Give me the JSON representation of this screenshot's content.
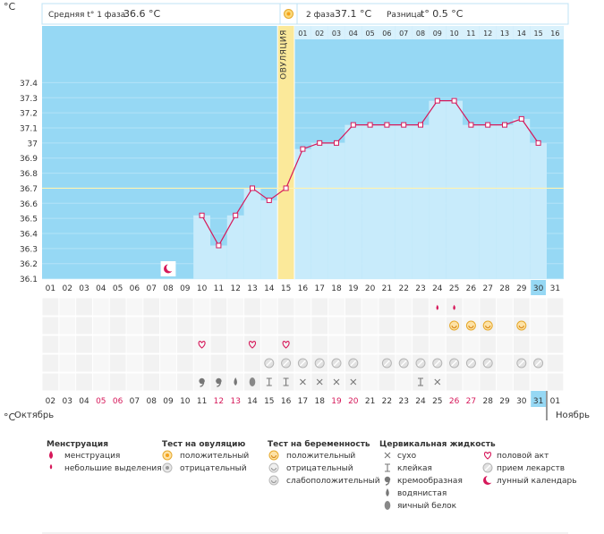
{
  "header": {
    "unit": "°C",
    "phase1_label": "Средняя t° 1 фаза",
    "phase1_value": "36.6 °C",
    "phase2_label": "2 фаза",
    "phase2_value": "37.1 °C",
    "diff_label": "Разница",
    "diff_value": "t° 0.5 °C"
  },
  "chart_data": {
    "type": "line",
    "ylim": [
      36.1,
      37.5
    ],
    "y_ticks": [
      "37.4",
      "37.3",
      "37.2",
      "37.1",
      "37",
      "36.9",
      "36.8",
      "36.7",
      "36.6",
      "36.5",
      "36.4",
      "36.3",
      "36.2",
      "36.1"
    ],
    "cycle_days": [
      "01",
      "02",
      "03",
      "04",
      "05",
      "06",
      "07",
      "08",
      "09",
      "10",
      "11",
      "12",
      "13",
      "14",
      "15",
      "16",
      "17",
      "18",
      "19",
      "20",
      "21",
      "22",
      "23",
      "24",
      "25",
      "26",
      "27",
      "28",
      "29",
      "30",
      "31"
    ],
    "dates": [
      "02",
      "03",
      "04",
      "05",
      "06",
      "07",
      "08",
      "09",
      "10",
      "11",
      "12",
      "13",
      "14",
      "15",
      "16",
      "17",
      "18",
      "19",
      "20",
      "21",
      "22",
      "23",
      "24",
      "25",
      "26",
      "27",
      "28",
      "29",
      "30",
      "31",
      "01"
    ],
    "red_date_indices": [
      3,
      4,
      10,
      11,
      17,
      18,
      24,
      25
    ],
    "today_index": 29,
    "ovulation_day_index": 14,
    "ovulation_label": "ОВУЛЯЦИЯ",
    "coverline": 36.7,
    "temperatures": [
      null,
      null,
      null,
      null,
      null,
      null,
      null,
      null,
      null,
      36.52,
      36.32,
      36.52,
      36.7,
      36.62,
      36.7,
      36.96,
      37.0,
      37.0,
      37.12,
      37.12,
      37.12,
      37.12,
      37.12,
      37.28,
      37.28,
      37.12,
      37.12,
      37.12,
      37.16,
      37.0,
      null
    ],
    "phase2_days": [
      "01",
      "02",
      "03",
      "04",
      "05",
      "06",
      "07",
      "08",
      "09",
      "10",
      "11",
      "12",
      "13",
      "14",
      "15",
      "16"
    ],
    "pink_phase2_index": 14,
    "month_left": "Октябрь",
    "month_right": "Ноябрь"
  },
  "rows": {
    "menstruation": [
      {
        "day_index": 23,
        "icon": "small-drop-icon"
      },
      {
        "day_index": 24,
        "icon": "small-drop-icon"
      }
    ],
    "ovulation_test": [
      {
        "day_index": 24,
        "icon": "positive-test-icon"
      },
      {
        "day_index": 25,
        "icon": "positive-test-icon"
      },
      {
        "day_index": 26,
        "icon": "positive-test-icon"
      },
      {
        "day_index": 28,
        "icon": "positive-test-icon"
      }
    ],
    "intercourse": [
      {
        "day_index": 9,
        "icon": "heart-icon"
      },
      {
        "day_index": 12,
        "icon": "heart-icon"
      },
      {
        "day_index": 14,
        "icon": "heart-icon"
      }
    ],
    "medication": [
      13,
      14,
      15,
      16,
      17,
      18,
      20,
      21,
      22,
      23,
      24,
      25,
      26,
      28,
      29
    ],
    "cervical": [
      {
        "day_index": 9,
        "icon": "creamy-icon"
      },
      {
        "day_index": 10,
        "icon": "creamy-icon"
      },
      {
        "day_index": 11,
        "icon": "watery-icon"
      },
      {
        "day_index": 12,
        "icon": "egg-white-icon"
      },
      {
        "day_index": 13,
        "icon": "sticky-icon"
      },
      {
        "day_index": 14,
        "icon": "sticky-icon"
      },
      {
        "day_index": 15,
        "icon": "dry-icon"
      },
      {
        "day_index": 16,
        "icon": "dry-icon"
      },
      {
        "day_index": 17,
        "icon": "dry-icon"
      },
      {
        "day_index": 18,
        "icon": "dry-icon"
      },
      {
        "day_index": 22,
        "icon": "sticky-icon"
      },
      {
        "day_index": 23,
        "icon": "dry-icon"
      }
    ],
    "moon_day_index": 7
  },
  "legend": {
    "menstruation": {
      "title": "Менструация",
      "items": [
        "менструация",
        "небольшие выделения"
      ]
    },
    "ovulation_test": {
      "title": "Тест на овуляцию",
      "items": [
        "положительный",
        "отрицательный"
      ]
    },
    "pregnancy_test": {
      "title": "Тест на беременность",
      "items": [
        "положительный",
        "отрицательный",
        "слабоположительный"
      ]
    },
    "cervical": {
      "title": "Цервикальная жидкость",
      "items": [
        "сухо",
        "клейкая",
        "кремообразная",
        "водянистая",
        "яичный белок"
      ]
    },
    "other": {
      "items": [
        "половой акт",
        "прием лекарств",
        "лунный календарь"
      ]
    }
  },
  "colors": {
    "bg_blue": "#96d8f4",
    "bar_fill": "#c8ebfb",
    "line": "#d6185a",
    "ovulation": "#fbe99a",
    "pink": "#f8b4c6",
    "red_text": "#d6185a"
  }
}
